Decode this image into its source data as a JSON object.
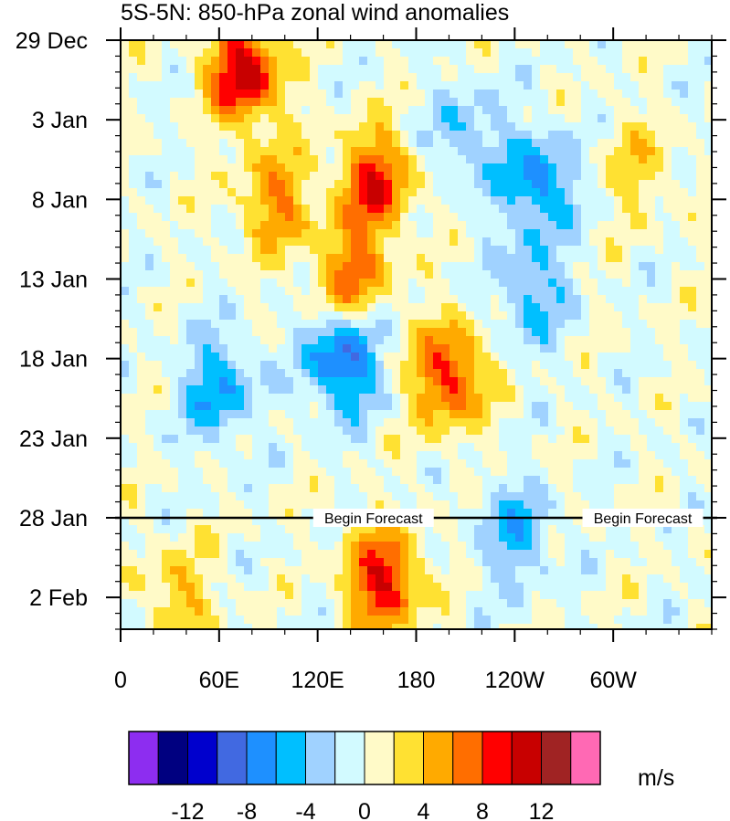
{
  "chart_data": {
    "type": "heatmap",
    "title": "5S-5N: 850-hPa zonal wind anomalies",
    "y_ticks": [
      "29 Dec",
      "3 Jan",
      "8 Jan",
      "13 Jan",
      "18 Jan",
      "23 Jan",
      "28 Jan",
      "2 Feb"
    ],
    "y_tick_day_offsets": [
      0,
      5,
      10,
      15,
      20,
      25,
      30,
      35
    ],
    "y_range_days": [
      0,
      37
    ],
    "x_ticks": [
      "0",
      "60E",
      "120E",
      "180",
      "120W",
      "60W"
    ],
    "x_tick_lon": [
      0,
      60,
      120,
      180,
      240,
      300
    ],
    "x_range_lon": [
      0,
      360
    ],
    "forecast_start_day": 30,
    "annotations": [
      "Begin Forecast",
      "Begin Forecast"
    ],
    "colorbar": {
      "unit": "m/s",
      "labels": [
        "-12",
        "-8",
        "-4",
        "0",
        "4",
        "8",
        "12"
      ],
      "label_values": [
        -12,
        -8,
        -4,
        0,
        4,
        8,
        12
      ],
      "levels": [
        -14,
        -12,
        -10,
        -8,
        -6,
        -4,
        -2,
        0,
        2,
        4,
        6,
        8,
        10,
        12,
        14
      ],
      "colors": [
        "#8d2df0",
        "#000080",
        "#0000cd",
        "#4169e1",
        "#1e90ff",
        "#00bfff",
        "#a0d2ff",
        "#d2faff",
        "#fffac8",
        "#ffe132",
        "#ffaa00",
        "#ff6e00",
        "#ff0000",
        "#c80000",
        "#a02323",
        "#ff69b4"
      ]
    },
    "anomaly_features": [
      {
        "lon": 75,
        "day": 2,
        "value": 11
      },
      {
        "lon": 95,
        "day": 10,
        "value": 6
      },
      {
        "lon": 155,
        "day": 9,
        "value": 9
      },
      {
        "lon": 140,
        "day": 15,
        "value": 7
      },
      {
        "lon": 135,
        "day": 20,
        "value": -9
      },
      {
        "lon": 200,
        "day": 21,
        "value": 9
      },
      {
        "lon": 160,
        "day": 34,
        "value": 10
      },
      {
        "lon": 255,
        "day": 9,
        "value": -7
      },
      {
        "lon": 250,
        "day": 16,
        "value": -5
      },
      {
        "lon": 210,
        "day": 6,
        "value": -4
      },
      {
        "lon": 60,
        "day": 22,
        "value": -6
      },
      {
        "lon": 240,
        "day": 31,
        "value": -5
      },
      {
        "lon": 35,
        "day": 35,
        "value": 4
      },
      {
        "lon": 315,
        "day": 8,
        "value": 3
      }
    ]
  }
}
